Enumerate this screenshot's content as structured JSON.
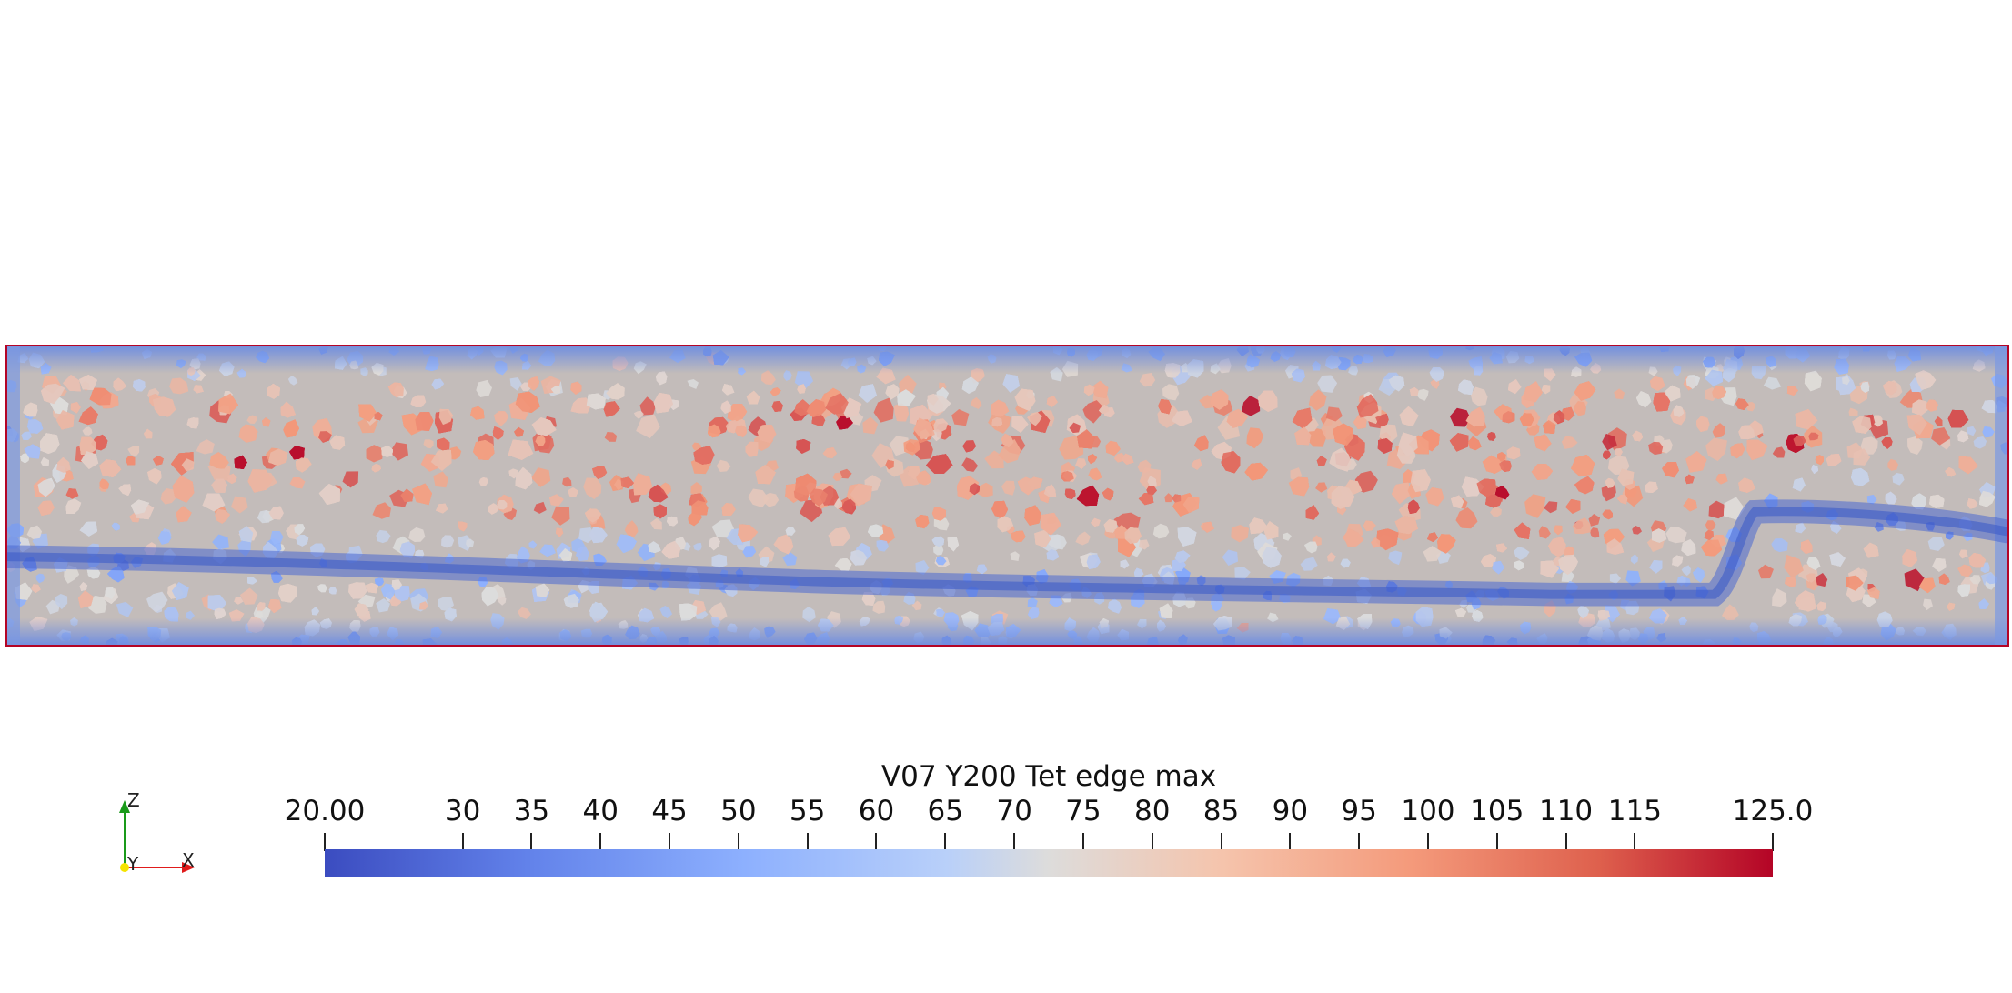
{
  "colorbar": {
    "title": "V07 Y200 Tet edge max",
    "min": 20.0,
    "max": 125.0,
    "ticks": [
      {
        "value": 20,
        "label": "20.00"
      },
      {
        "value": 30,
        "label": "30"
      },
      {
        "value": 35,
        "label": "35"
      },
      {
        "value": 40,
        "label": "40"
      },
      {
        "value": 45,
        "label": "45"
      },
      {
        "value": 50,
        "label": "50"
      },
      {
        "value": 55,
        "label": "55"
      },
      {
        "value": 60,
        "label": "60"
      },
      {
        "value": 65,
        "label": "65"
      },
      {
        "value": 70,
        "label": "70"
      },
      {
        "value": 75,
        "label": "75"
      },
      {
        "value": 80,
        "label": "80"
      },
      {
        "value": 85,
        "label": "85"
      },
      {
        "value": 90,
        "label": "90"
      },
      {
        "value": 95,
        "label": "95"
      },
      {
        "value": 100,
        "label": "100"
      },
      {
        "value": 105,
        "label": "105"
      },
      {
        "value": 110,
        "label": "110"
      },
      {
        "value": 115,
        "label": "115"
      },
      {
        "value": 125,
        "label": "125.0"
      }
    ],
    "colormap": "cool-to-warm",
    "color_low": "#3b4cc0",
    "color_mid": "#dddcdb",
    "color_high": "#b40426"
  },
  "axes": {
    "z": "Z",
    "y": "Y",
    "x": "X",
    "z_color": "#1a9a1a",
    "x_color": "#e01b1b",
    "origin_color": "#f5e400"
  },
  "mesh": {
    "outline_color": "#b40426"
  }
}
